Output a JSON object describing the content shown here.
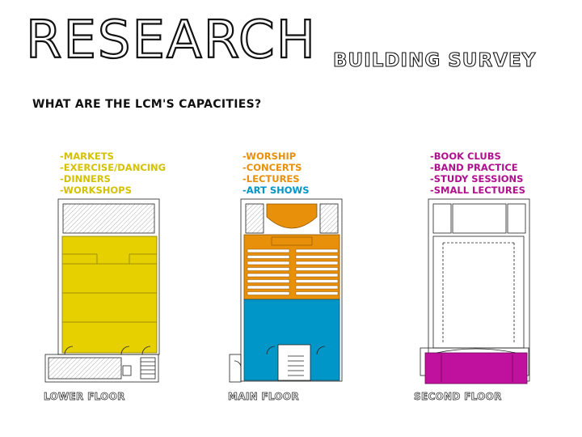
{
  "header": {
    "title": "RESEARCH",
    "subtitle": "BUILDING SURVEY",
    "question": "WHAT ARE THE LCM'S CAPACITIES?"
  },
  "colors": {
    "yellow": "#e6d000",
    "orange": "#e8900a",
    "blue": "#0096c8",
    "magenta": "#c0109e",
    "hatch": "#9a9a9a",
    "line": "#222222"
  },
  "floors": [
    {
      "name": "LOWER FLOOR",
      "activities": [
        {
          "text": "-MARKETS",
          "color": "#d4c200"
        },
        {
          "text": "-EXERCISE/DANCING",
          "color": "#d4c200"
        },
        {
          "text": "-DINNERS",
          "color": "#d4c200"
        },
        {
          "text": "-WORKSHOPS",
          "color": "#d4c200"
        }
      ]
    },
    {
      "name": "MAIN FLOOR",
      "activities": [
        {
          "text": "-WORSHIP",
          "color": "#e8900a"
        },
        {
          "text": "-CONCERTS",
          "color": "#e8900a"
        },
        {
          "text": "-LECTURES",
          "color": "#e8900a"
        },
        {
          "text": "-ART SHOWS",
          "color": "#0096c8"
        }
      ]
    },
    {
      "name": "SECOND FLOOR",
      "activities": [
        {
          "text": "-BOOK CLUBS",
          "color": "#b0108e"
        },
        {
          "text": "-BAND PRACTICE",
          "color": "#b0108e"
        },
        {
          "text": "-STUDY SESSIONS",
          "color": "#b0108e"
        },
        {
          "text": "-SMALL LECTURES",
          "color": "#b0108e"
        }
      ]
    }
  ]
}
